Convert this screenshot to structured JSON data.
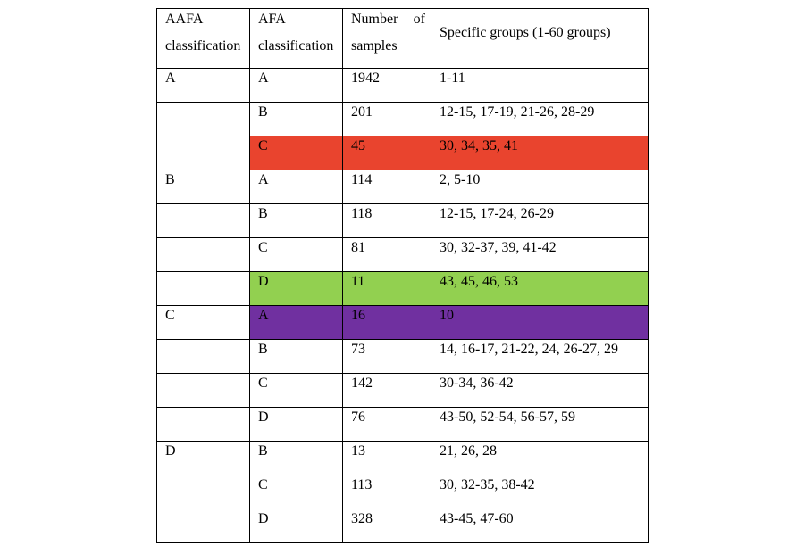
{
  "table": {
    "headers": [
      {
        "lines": [
          "AAFA",
          "classification"
        ]
      },
      {
        "lines": [
          "AFA",
          "classification"
        ]
      },
      {
        "lines": [
          "Number of",
          "samples"
        ]
      },
      {
        "lines": [
          "Specific groups (1-60 groups)"
        ]
      }
    ],
    "rows": [
      {
        "aafa": "A",
        "afa": "A",
        "samples": "1942",
        "groups": "1-11"
      },
      {
        "aafa": "",
        "afa": "B",
        "samples": "201",
        "groups": "12-15, 17-19, 21-26, 28-29"
      },
      {
        "aafa": "",
        "afa": "C",
        "samples": "45",
        "groups": "30, 34, 35, 41",
        "highlight": "#e9442e"
      },
      {
        "aafa": "B",
        "afa": "A",
        "samples": "114",
        "groups": "2, 5-10"
      },
      {
        "aafa": "",
        "afa": "B",
        "samples": "118",
        "groups": "12-15, 17-24, 26-29"
      },
      {
        "aafa": "",
        "afa": "C",
        "samples": "81",
        "groups": "30, 32-37, 39, 41-42"
      },
      {
        "aafa": "",
        "afa": "D",
        "samples": "11",
        "groups": "43, 45, 46, 53",
        "highlight": "#92d050"
      },
      {
        "aafa": "C",
        "afa": "A",
        "samples": "16",
        "groups": "10",
        "highlight": "#7030a0"
      },
      {
        "aafa": "",
        "afa": "B",
        "samples": "73",
        "groups": "14, 16-17, 21-22, 24, 26-27, 29"
      },
      {
        "aafa": "",
        "afa": "C",
        "samples": "142",
        "groups": "30-34, 36-42"
      },
      {
        "aafa": "",
        "afa": "D",
        "samples": "76",
        "groups": "43-50, 52-54, 56-57, 59"
      },
      {
        "aafa": "D",
        "afa": "B",
        "samples": "13",
        "groups": "21, 26, 28"
      },
      {
        "aafa": "",
        "afa": "C",
        "samples": "113",
        "groups": "30, 32-35, 38-42"
      },
      {
        "aafa": "",
        "afa": "D",
        "samples": "328",
        "groups": "43-45, 47-60"
      }
    ]
  }
}
